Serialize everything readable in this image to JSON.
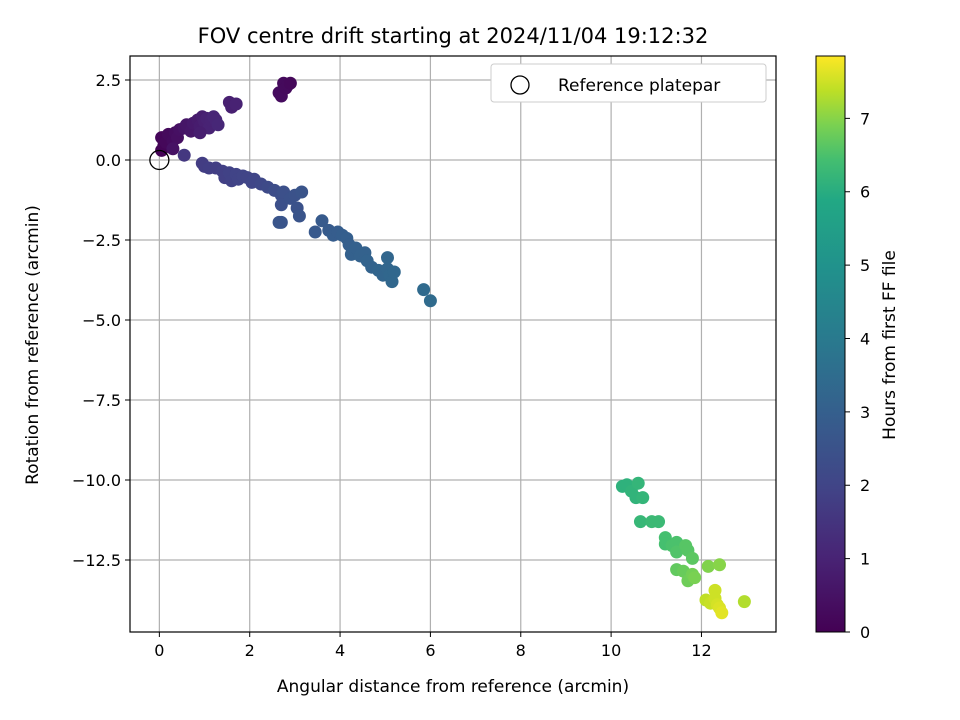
{
  "chart_data": {
    "type": "scatter",
    "title": "FOV centre drift starting at 2024/11/04 19:12:32",
    "xlabel": "Angular distance from reference (arcmin)",
    "ylabel": "Rotation from reference (arcmin)",
    "xlim": [
      -0.65,
      13.65
    ],
    "ylim": [
      -14.75,
      3.25
    ],
    "xticks": [
      0,
      2,
      4,
      6,
      8,
      10,
      12
    ],
    "yticks": [
      2.5,
      0.0,
      -2.5,
      -5.0,
      -7.5,
      -10.0,
      -12.5
    ],
    "xtick_labels": [
      "0",
      "2",
      "4",
      "6",
      "8",
      "10",
      "12"
    ],
    "ytick_labels": [
      "2.5",
      "0.0",
      "−2.5",
      "−5.0",
      "−7.5",
      "−10.0",
      "−12.5"
    ],
    "grid": true,
    "legend": {
      "placement": "top-right",
      "entries": [
        {
          "label": "Reference platepar",
          "marker": "open-circle"
        }
      ]
    },
    "reference_point": {
      "x": 0.0,
      "y": 0.0
    },
    "colorbar": {
      "label": "Hours from first FF file",
      "colormap": "viridis",
      "range": [
        0,
        7.85
      ],
      "ticks": [
        0,
        1,
        2,
        3,
        4,
        5,
        6,
        7
      ],
      "tick_labels": [
        "0",
        "1",
        "2",
        "3",
        "4",
        "5",
        "6",
        "7"
      ]
    },
    "series": [
      {
        "values": [
          {
            "x": 0.05,
            "y": 0.3,
            "c": 0.05
          },
          {
            "x": 0.1,
            "y": 0.45,
            "c": 0.1
          },
          {
            "x": 0.05,
            "y": 0.7,
            "c": 0.15
          },
          {
            "x": 0.15,
            "y": 0.55,
            "c": 0.2
          },
          {
            "x": 0.2,
            "y": 0.8,
            "c": 0.25
          },
          {
            "x": 0.3,
            "y": 0.6,
            "c": 0.3
          },
          {
            "x": 0.35,
            "y": 0.85,
            "c": 0.35
          },
          {
            "x": 0.4,
            "y": 0.7,
            "c": 0.4
          },
          {
            "x": 0.45,
            "y": 0.95,
            "c": 0.45
          },
          {
            "x": 0.3,
            "y": 0.35,
            "c": 0.5
          },
          {
            "x": 0.55,
            "y": 1.0,
            "c": 0.55
          },
          {
            "x": 0.6,
            "y": 1.1,
            "c": 0.6
          },
          {
            "x": 0.7,
            "y": 0.9,
            "c": 0.65
          },
          {
            "x": 0.75,
            "y": 1.15,
            "c": 0.7
          },
          {
            "x": 0.85,
            "y": 1.25,
            "c": 0.75
          },
          {
            "x": 0.9,
            "y": 1.05,
            "c": 0.8
          },
          {
            "x": 0.95,
            "y": 1.35,
            "c": 0.85
          },
          {
            "x": 1.0,
            "y": 1.2,
            "c": 0.9
          },
          {
            "x": 1.05,
            "y": 1.3,
            "c": 0.95
          },
          {
            "x": 1.1,
            "y": 1.0,
            "c": 1.0
          },
          {
            "x": 1.15,
            "y": 1.25,
            "c": 1.0
          },
          {
            "x": 1.2,
            "y": 1.35,
            "c": 1.05
          },
          {
            "x": 1.25,
            "y": 1.25,
            "c": 1.05
          },
          {
            "x": 1.3,
            "y": 1.1,
            "c": 1.1
          },
          {
            "x": 0.9,
            "y": 0.85,
            "c": 0.85
          },
          {
            "x": 1.55,
            "y": 1.8,
            "c": 0.9
          },
          {
            "x": 1.6,
            "y": 1.65,
            "c": 0.9
          },
          {
            "x": 1.7,
            "y": 1.75,
            "c": 0.95
          },
          {
            "x": 2.65,
            "y": 2.1,
            "c": 0.3
          },
          {
            "x": 2.7,
            "y": 2.0,
            "c": 0.3
          },
          {
            "x": 2.75,
            "y": 2.4,
            "c": 0.25
          },
          {
            "x": 2.8,
            "y": 2.25,
            "c": 0.25
          },
          {
            "x": 2.85,
            "y": 2.35,
            "c": 0.25
          },
          {
            "x": 2.9,
            "y": 2.4,
            "c": 0.2
          },
          {
            "x": 0.55,
            "y": 0.15,
            "c": 1.6
          },
          {
            "x": 0.95,
            "y": -0.1,
            "c": 1.75
          },
          {
            "x": 1.0,
            "y": -0.2,
            "c": 1.75
          },
          {
            "x": 1.1,
            "y": -0.25,
            "c": 1.8
          },
          {
            "x": 1.25,
            "y": -0.25,
            "c": 1.8
          },
          {
            "x": 1.4,
            "y": -0.35,
            "c": 1.85
          },
          {
            "x": 1.45,
            "y": -0.55,
            "c": 1.85
          },
          {
            "x": 1.55,
            "y": -0.4,
            "c": 1.9
          },
          {
            "x": 1.6,
            "y": -0.65,
            "c": 1.9
          },
          {
            "x": 1.7,
            "y": -0.45,
            "c": 1.95
          },
          {
            "x": 1.75,
            "y": -0.6,
            "c": 1.95
          },
          {
            "x": 1.85,
            "y": -0.5,
            "c": 2.0
          },
          {
            "x": 1.95,
            "y": -0.55,
            "c": 2.0
          },
          {
            "x": 2.05,
            "y": -0.7,
            "c": 2.05
          },
          {
            "x": 2.1,
            "y": -0.6,
            "c": 2.05
          },
          {
            "x": 2.25,
            "y": -0.75,
            "c": 2.1
          },
          {
            "x": 2.4,
            "y": -0.85,
            "c": 2.2
          },
          {
            "x": 2.55,
            "y": -0.95,
            "c": 2.3
          },
          {
            "x": 2.7,
            "y": -1.1,
            "c": 2.35
          },
          {
            "x": 2.7,
            "y": -1.4,
            "c": 2.4
          },
          {
            "x": 2.75,
            "y": -1.0,
            "c": 2.4
          },
          {
            "x": 2.9,
            "y": -1.2,
            "c": 2.45
          },
          {
            "x": 3.0,
            "y": -1.1,
            "c": 2.5
          },
          {
            "x": 3.05,
            "y": -1.5,
            "c": 2.5
          },
          {
            "x": 3.1,
            "y": -1.75,
            "c": 2.55
          },
          {
            "x": 3.15,
            "y": -1.0,
            "c": 2.55
          },
          {
            "x": 2.65,
            "y": -1.95,
            "c": 2.6
          },
          {
            "x": 2.7,
            "y": -1.95,
            "c": 2.6
          },
          {
            "x": 3.45,
            "y": -2.25,
            "c": 2.75
          },
          {
            "x": 3.6,
            "y": -1.9,
            "c": 2.8
          },
          {
            "x": 3.75,
            "y": -2.2,
            "c": 2.85
          },
          {
            "x": 3.85,
            "y": -2.35,
            "c": 2.9
          },
          {
            "x": 3.95,
            "y": -2.25,
            "c": 2.9
          },
          {
            "x": 4.05,
            "y": -2.35,
            "c": 2.95
          },
          {
            "x": 4.15,
            "y": -2.45,
            "c": 3.0
          },
          {
            "x": 4.2,
            "y": -2.65,
            "c": 3.0
          },
          {
            "x": 4.25,
            "y": -2.95,
            "c": 3.05
          },
          {
            "x": 4.35,
            "y": -2.75,
            "c": 3.05
          },
          {
            "x": 4.45,
            "y": -3.0,
            "c": 3.1
          },
          {
            "x": 4.55,
            "y": -2.9,
            "c": 3.1
          },
          {
            "x": 4.6,
            "y": -3.15,
            "c": 3.15
          },
          {
            "x": 4.7,
            "y": -3.35,
            "c": 3.15
          },
          {
            "x": 4.85,
            "y": -3.45,
            "c": 3.2
          },
          {
            "x": 4.95,
            "y": -3.6,
            "c": 3.2
          },
          {
            "x": 5.05,
            "y": -3.4,
            "c": 3.25
          },
          {
            "x": 5.05,
            "y": -3.05,
            "c": 3.25
          },
          {
            "x": 5.1,
            "y": -3.6,
            "c": 3.3
          },
          {
            "x": 5.15,
            "y": -3.8,
            "c": 3.3
          },
          {
            "x": 5.2,
            "y": -3.5,
            "c": 3.3
          },
          {
            "x": 5.85,
            "y": -4.05,
            "c": 3.4
          },
          {
            "x": 6.0,
            "y": -4.4,
            "c": 3.45
          },
          {
            "x": 10.25,
            "y": -10.2,
            "c": 6.1
          },
          {
            "x": 10.35,
            "y": -10.15,
            "c": 6.1
          },
          {
            "x": 10.45,
            "y": -10.35,
            "c": 6.15
          },
          {
            "x": 10.55,
            "y": -10.55,
            "c": 6.15
          },
          {
            "x": 10.6,
            "y": -10.1,
            "c": 6.2
          },
          {
            "x": 10.7,
            "y": -10.55,
            "c": 6.2
          },
          {
            "x": 10.65,
            "y": -11.3,
            "c": 6.25
          },
          {
            "x": 10.9,
            "y": -11.3,
            "c": 6.3
          },
          {
            "x": 11.05,
            "y": -11.3,
            "c": 6.3
          },
          {
            "x": 11.2,
            "y": -11.8,
            "c": 6.45
          },
          {
            "x": 11.2,
            "y": -12.0,
            "c": 6.45
          },
          {
            "x": 11.35,
            "y": -12.05,
            "c": 6.5
          },
          {
            "x": 11.45,
            "y": -11.95,
            "c": 6.5
          },
          {
            "x": 11.45,
            "y": -12.25,
            "c": 6.55
          },
          {
            "x": 11.65,
            "y": -12.05,
            "c": 6.6
          },
          {
            "x": 11.7,
            "y": -12.2,
            "c": 6.6
          },
          {
            "x": 11.8,
            "y": -12.45,
            "c": 6.65
          },
          {
            "x": 11.45,
            "y": -12.8,
            "c": 6.7
          },
          {
            "x": 11.6,
            "y": -12.85,
            "c": 6.75
          },
          {
            "x": 11.7,
            "y": -13.15,
            "c": 6.8
          },
          {
            "x": 11.8,
            "y": -12.95,
            "c": 6.85
          },
          {
            "x": 11.85,
            "y": -13.05,
            "c": 6.9
          },
          {
            "x": 12.15,
            "y": -12.7,
            "c": 6.95
          },
          {
            "x": 12.4,
            "y": -12.65,
            "c": 7.0
          },
          {
            "x": 12.1,
            "y": -13.75,
            "c": 7.4
          },
          {
            "x": 12.2,
            "y": -13.85,
            "c": 7.45
          },
          {
            "x": 12.3,
            "y": -13.45,
            "c": 7.5
          },
          {
            "x": 12.3,
            "y": -13.7,
            "c": 7.5
          },
          {
            "x": 12.35,
            "y": -13.9,
            "c": 7.55
          },
          {
            "x": 12.4,
            "y": -14.0,
            "c": 7.6
          },
          {
            "x": 12.45,
            "y": -14.15,
            "c": 7.65
          },
          {
            "x": 12.95,
            "y": -13.8,
            "c": 7.3
          }
        ]
      }
    ]
  }
}
